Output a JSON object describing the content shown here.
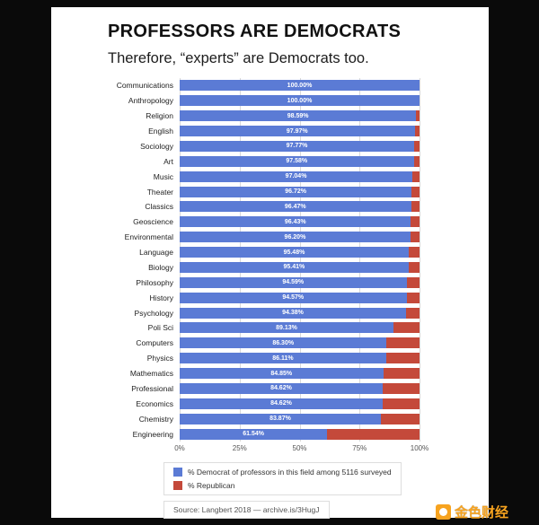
{
  "header": {
    "title": "PROFESSORS ARE DEMOCRATS",
    "subtitle": "Therefore, “experts” are Democrats too."
  },
  "chart_data": {
    "type": "bar",
    "orientation": "horizontal",
    "stacked": true,
    "categories": [
      "Communications",
      "Anthropology",
      "Religion",
      "English",
      "Sociology",
      "Art",
      "Music",
      "Theater",
      "Classics",
      "Geoscience",
      "Environmental",
      "Language",
      "Biology",
      "Philosophy",
      "History",
      "Psychology",
      "Poli Sci",
      "Computers",
      "Physics",
      "Mathematics",
      "Professional",
      "Economics",
      "Chemistry",
      "Engineering"
    ],
    "series": [
      {
        "name": "% Democrat of professors in this field among 5116 surveyed",
        "color": "#5b7bd5",
        "values": [
          100.0,
          100.0,
          98.59,
          97.97,
          97.77,
          97.58,
          97.04,
          96.72,
          96.47,
          96.43,
          96.2,
          95.48,
          95.41,
          94.59,
          94.57,
          94.38,
          89.13,
          86.3,
          86.11,
          84.85,
          84.62,
          84.62,
          83.87,
          61.54
        ]
      },
      {
        "name": "% Republican",
        "color": "#c4493a",
        "values": [
          0.0,
          0.0,
          1.41,
          2.03,
          2.23,
          2.42,
          2.96,
          3.28,
          3.53,
          3.57,
          3.8,
          4.52,
          4.59,
          5.41,
          5.43,
          5.62,
          10.87,
          13.7,
          13.89,
          15.15,
          15.38,
          15.38,
          16.13,
          38.46
        ]
      }
    ],
    "value_labels": [
      "100.00%",
      "100.00%",
      "98.59%",
      "97.97%",
      "97.77%",
      "97.58%",
      "97.04%",
      "96.72%",
      "96.47%",
      "96.43%",
      "96.20%",
      "95.48%",
      "95.41%",
      "94.59%",
      "94.57%",
      "94.38%",
      "89.13%",
      "86.30%",
      "86.11%",
      "84.85%",
      "84.62%",
      "84.62%",
      "83.87%",
      "61.54%"
    ],
    "x_ticks": [
      "0%",
      "25%",
      "50%",
      "75%",
      "100%"
    ],
    "xlim": [
      0,
      100
    ],
    "grid": true,
    "legend_position": "bottom"
  },
  "source": "Source: Langbert 2018 — archive.is/3HugJ",
  "watermark": {
    "text": "金色财经",
    "icon": "gold-coin-icon",
    "color": "#f7a31f"
  }
}
